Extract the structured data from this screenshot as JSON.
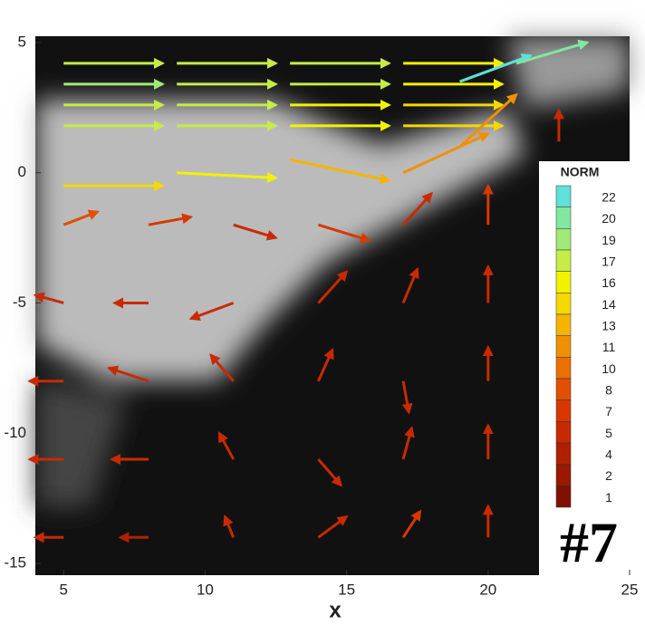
{
  "chart_data": {
    "type": "quiver",
    "xlabel": "x",
    "xlim": [
      4,
      25
    ],
    "xticks": [
      5,
      10,
      15,
      20,
      25
    ],
    "ylim": [
      -15.45,
      5.24
    ],
    "yticks": [
      5,
      0,
      -5,
      -10,
      -15
    ],
    "annotation": "#7",
    "colorbar": {
      "title": "NORM",
      "levels": [
        22,
        20,
        19,
        17,
        16,
        14,
        13,
        11,
        10,
        8,
        7,
        5,
        4,
        2,
        1
      ],
      "colors": [
        "#5fe0d8",
        "#80e8a0",
        "#a0ea78",
        "#c6ec48",
        "#f2f200",
        "#f5d800",
        "#f5b400",
        "#f09000",
        "#ea7000",
        "#e05000",
        "#d83800",
        "#c82a00",
        "#b02000",
        "#981800",
        "#801000"
      ]
    },
    "x": [
      5,
      9,
      13,
      17,
      5,
      9,
      13,
      17,
      5,
      9,
      13,
      17,
      5,
      9,
      13,
      17,
      19,
      21,
      22.5,
      5,
      9,
      13,
      17,
      19,
      5,
      8,
      11,
      14,
      17,
      20,
      5,
      8,
      11,
      14,
      17,
      20,
      5,
      8,
      11,
      14,
      17,
      20,
      5,
      8,
      11,
      14,
      17,
      20,
      5,
      8,
      11,
      14,
      17,
      20
    ],
    "y": [
      4.2,
      4.2,
      4.2,
      4.2,
      3.4,
      3.4,
      3.4,
      3.4,
      2.6,
      2.6,
      2.6,
      2.6,
      1.8,
      1.8,
      1.8,
      1.8,
      3.5,
      4.2,
      1.2,
      -0.5,
      0,
      0.5,
      0,
      1,
      -2,
      -2,
      -2,
      -2,
      -2,
      -2,
      -5,
      -5,
      -5,
      -5,
      -5,
      -5,
      -8,
      -8,
      -8,
      -8,
      -8,
      -8,
      -11,
      -11,
      -11,
      -11,
      -11,
      -11,
      -14,
      -14,
      -14,
      -14,
      -14,
      -14
    ],
    "u": [
      3.5,
      3.5,
      3.5,
      3.5,
      3.5,
      3.5,
      3.5,
      3.5,
      3.5,
      3.5,
      3.5,
      3.5,
      3.5,
      3.5,
      3.5,
      3.5,
      2.5,
      2.5,
      0,
      3.5,
      3.5,
      3.5,
      3,
      2,
      1.2,
      1.5,
      1.5,
      1.8,
      1,
      0,
      -1,
      -1.2,
      -1.5,
      1,
      0.5,
      0,
      -1.2,
      -1.4,
      -0.8,
      0.5,
      0.2,
      0,
      -1.2,
      -1.3,
      -0.5,
      0.8,
      0.3,
      0,
      -1,
      -1,
      -0.3,
      1,
      0.6,
      0
    ],
    "v": [
      0,
      0,
      0,
      0,
      0,
      0,
      0,
      0,
      0,
      0,
      0,
      0,
      0,
      0,
      0,
      0,
      1,
      0.8,
      1.2,
      0,
      -0.2,
      -0.8,
      1.5,
      2,
      0.5,
      0.3,
      -0.5,
      -0.6,
      1.2,
      1.5,
      0.3,
      0,
      -0.6,
      1.2,
      1.3,
      1.4,
      0,
      0.5,
      1,
      1.2,
      -1.2,
      1.3,
      0,
      0,
      1,
      -1,
      1.2,
      1.3,
      0,
      0,
      0.8,
      0.8,
      1,
      1.2
    ],
    "norm": [
      18,
      18,
      17,
      16,
      19,
      18,
      17,
      16,
      18,
      17,
      16,
      15,
      17,
      17,
      16,
      15,
      22,
      21,
      6,
      15,
      16,
      13,
      12,
      11,
      8,
      7,
      6,
      7,
      6,
      7,
      5,
      5,
      6,
      5,
      6,
      6,
      5,
      6,
      5,
      6,
      6,
      6,
      5,
      5,
      5,
      6,
      6,
      6,
      5,
      4,
      5,
      6,
      7,
      6
    ]
  }
}
